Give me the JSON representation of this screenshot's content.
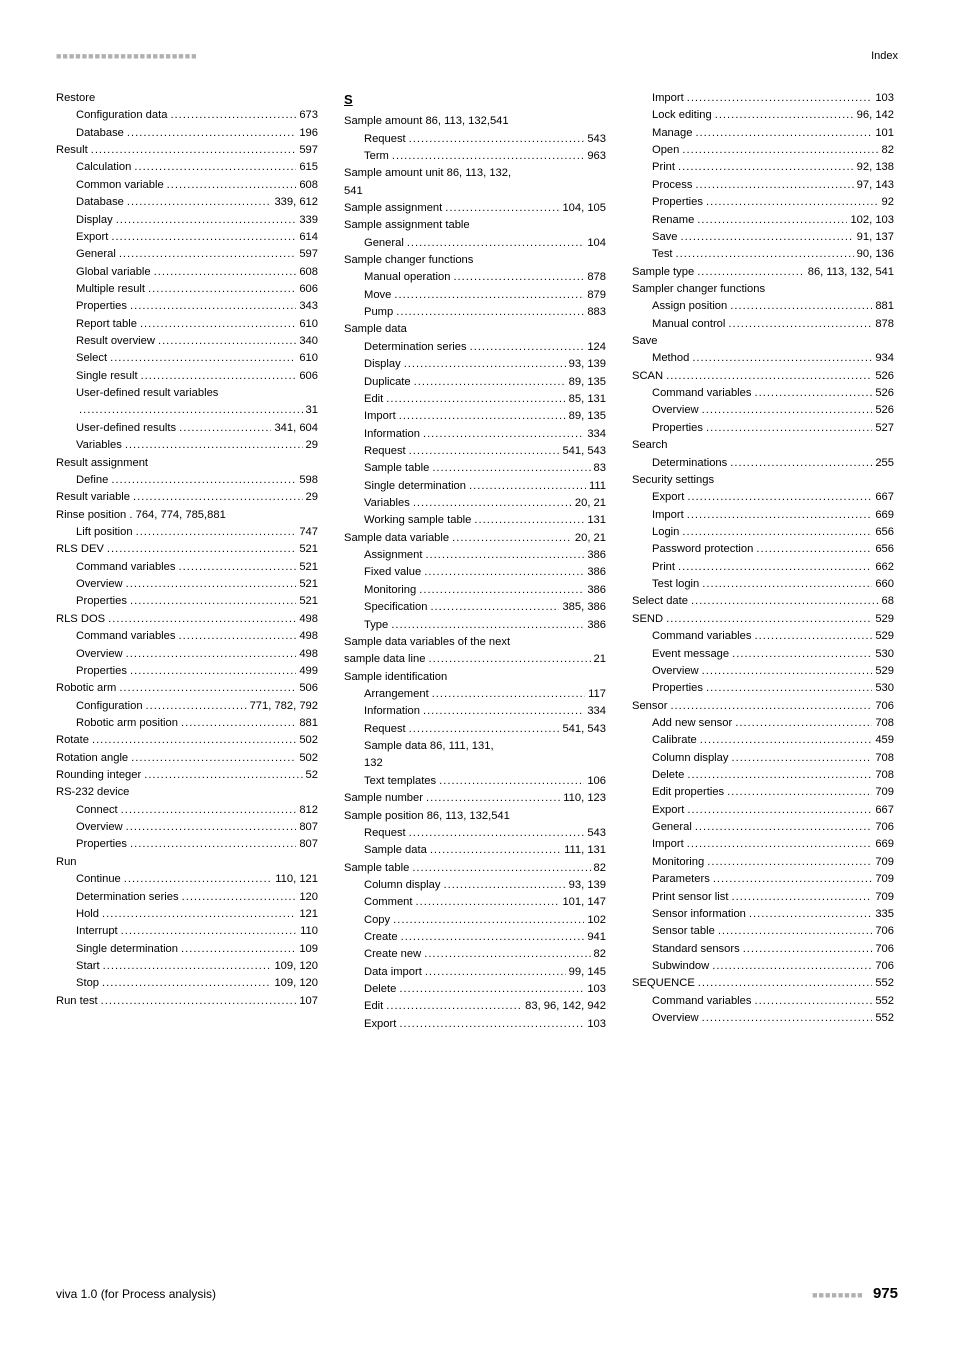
{
  "header": {
    "squares": "■■■■■■■■■■■■■■■■■■■■■■",
    "right_label": "Index"
  },
  "footer": {
    "left": "viva 1.0 (for Process analysis)",
    "squares": "■■■■■■■■",
    "page": "975"
  },
  "col1": [
    {
      "t": "h",
      "label": "Restore"
    },
    {
      "t": "e",
      "indent": 1,
      "label": "Configuration data",
      "page": "673"
    },
    {
      "t": "e",
      "indent": 1,
      "label": "Database",
      "page": "196"
    },
    {
      "t": "e",
      "indent": 0,
      "label": "Result",
      "page": "597"
    },
    {
      "t": "e",
      "indent": 1,
      "label": "Calculation",
      "page": "615"
    },
    {
      "t": "e",
      "indent": 1,
      "label": "Common variable",
      "page": "608"
    },
    {
      "t": "e",
      "indent": 1,
      "label": "Database",
      "page": "339, 612"
    },
    {
      "t": "e",
      "indent": 1,
      "label": "Display",
      "page": "339"
    },
    {
      "t": "e",
      "indent": 1,
      "label": "Export",
      "page": "614"
    },
    {
      "t": "e",
      "indent": 1,
      "label": "General",
      "page": "597"
    },
    {
      "t": "e",
      "indent": 1,
      "label": "Global variable",
      "page": "608"
    },
    {
      "t": "e",
      "indent": 1,
      "label": "Multiple result",
      "page": "606"
    },
    {
      "t": "e",
      "indent": 1,
      "label": "Properties",
      "page": "343"
    },
    {
      "t": "e",
      "indent": 1,
      "label": "Report table",
      "page": "610"
    },
    {
      "t": "e",
      "indent": 1,
      "label": "Result overview",
      "page": "340"
    },
    {
      "t": "e",
      "indent": 1,
      "label": "Select",
      "page": "610"
    },
    {
      "t": "e",
      "indent": 1,
      "label": "Single result",
      "page": "606"
    },
    {
      "t": "p",
      "indent": 1,
      "label": "User-defined result variables"
    },
    {
      "t": "e",
      "indent": 1,
      "label": "",
      "page": "31"
    },
    {
      "t": "e",
      "indent": 1,
      "label": "User-defined results",
      "page": "341, 604"
    },
    {
      "t": "e",
      "indent": 1,
      "label": "Variables",
      "page": "29"
    },
    {
      "t": "h",
      "label": "Result assignment"
    },
    {
      "t": "e",
      "indent": 1,
      "label": "Define",
      "page": "598"
    },
    {
      "t": "e",
      "indent": 0,
      "label": "Result variable",
      "page": "29"
    },
    {
      "t": "e",
      "indent": 0,
      "label": "Rinse position . 764, 774, 785,",
      "page": "881",
      "nodots": true
    },
    {
      "t": "e",
      "indent": 1,
      "label": "Lift position",
      "page": "747"
    },
    {
      "t": "e",
      "indent": 0,
      "label": "RLS DEV",
      "page": "521"
    },
    {
      "t": "e",
      "indent": 1,
      "label": "Command variables",
      "page": "521"
    },
    {
      "t": "e",
      "indent": 1,
      "label": "Overview",
      "page": "521"
    },
    {
      "t": "e",
      "indent": 1,
      "label": "Properties",
      "page": "521"
    },
    {
      "t": "e",
      "indent": 0,
      "label": "RLS DOS",
      "page": "498"
    },
    {
      "t": "e",
      "indent": 1,
      "label": "Command variables",
      "page": "498"
    },
    {
      "t": "e",
      "indent": 1,
      "label": "Overview",
      "page": "498"
    },
    {
      "t": "e",
      "indent": 1,
      "label": "Properties",
      "page": "499"
    },
    {
      "t": "e",
      "indent": 0,
      "label": "Robotic arm",
      "page": "506"
    },
    {
      "t": "e",
      "indent": 1,
      "label": "Configuration",
      "page": "771, 782, 792"
    },
    {
      "t": "e",
      "indent": 1,
      "label": "Robotic arm position",
      "page": "881"
    },
    {
      "t": "e",
      "indent": 0,
      "label": "Rotate",
      "page": "502"
    },
    {
      "t": "e",
      "indent": 0,
      "label": "Rotation angle",
      "page": "502"
    },
    {
      "t": "e",
      "indent": 0,
      "label": "Rounding integer",
      "page": "52"
    },
    {
      "t": "h",
      "label": "RS-232 device"
    },
    {
      "t": "e",
      "indent": 1,
      "label": "Connect",
      "page": "812"
    },
    {
      "t": "e",
      "indent": 1,
      "label": "Overview",
      "page": "807"
    },
    {
      "t": "e",
      "indent": 1,
      "label": "Properties",
      "page": "807"
    },
    {
      "t": "h",
      "label": "Run"
    },
    {
      "t": "e",
      "indent": 1,
      "label": "Continue",
      "page": "110, 121"
    },
    {
      "t": "e",
      "indent": 1,
      "label": "Determination series",
      "page": "120"
    },
    {
      "t": "e",
      "indent": 1,
      "label": "Hold",
      "page": "121"
    },
    {
      "t": "e",
      "indent": 1,
      "label": "Interrupt",
      "page": "110"
    },
    {
      "t": "e",
      "indent": 1,
      "label": "Single determination",
      "page": "109"
    },
    {
      "t": "e",
      "indent": 1,
      "label": "Start",
      "page": "109, 120"
    },
    {
      "t": "e",
      "indent": 1,
      "label": "Stop",
      "page": "109, 120"
    },
    {
      "t": "e",
      "indent": 0,
      "label": "Run test",
      "page": "107"
    }
  ],
  "col2": [
    {
      "t": "s",
      "label": "S"
    },
    {
      "t": "e",
      "indent": 0,
      "label": "Sample amount  86, 113, 132,",
      "page": "541",
      "nodots": true
    },
    {
      "t": "e",
      "indent": 1,
      "label": "Request",
      "page": "543"
    },
    {
      "t": "e",
      "indent": 1,
      "label": "Term",
      "page": "963"
    },
    {
      "t": "p",
      "indent": 0,
      "label": "Sample amount unit  86, 113, 132,"
    },
    {
      "t": "p",
      "indent": 0,
      "label": "541"
    },
    {
      "t": "e",
      "indent": 0,
      "label": "Sample assignment",
      "page": "104, 105"
    },
    {
      "t": "h",
      "label": "Sample assignment table"
    },
    {
      "t": "e",
      "indent": 1,
      "label": "General",
      "page": "104"
    },
    {
      "t": "h",
      "label": "Sample changer functions"
    },
    {
      "t": "e",
      "indent": 1,
      "label": "Manual operation",
      "page": "878"
    },
    {
      "t": "e",
      "indent": 1,
      "label": "Move",
      "page": "879"
    },
    {
      "t": "e",
      "indent": 1,
      "label": "Pump",
      "page": "883"
    },
    {
      "t": "h",
      "label": "Sample data"
    },
    {
      "t": "e",
      "indent": 1,
      "label": "Determination series",
      "page": "124"
    },
    {
      "t": "e",
      "indent": 1,
      "label": "Display",
      "page": "93, 139"
    },
    {
      "t": "e",
      "indent": 1,
      "label": "Duplicate",
      "page": "89, 135"
    },
    {
      "t": "e",
      "indent": 1,
      "label": "Edit",
      "page": "85, 131"
    },
    {
      "t": "e",
      "indent": 1,
      "label": "Import",
      "page": "89, 135"
    },
    {
      "t": "e",
      "indent": 1,
      "label": "Information",
      "page": "334"
    },
    {
      "t": "e",
      "indent": 1,
      "label": "Request",
      "page": "541, 543"
    },
    {
      "t": "e",
      "indent": 1,
      "label": "Sample table",
      "page": "83"
    },
    {
      "t": "e",
      "indent": 1,
      "label": "Single determination",
      "page": "111"
    },
    {
      "t": "e",
      "indent": 1,
      "label": "Variables",
      "page": "20, 21"
    },
    {
      "t": "e",
      "indent": 1,
      "label": "Working sample table",
      "page": "131"
    },
    {
      "t": "e",
      "indent": 0,
      "label": "Sample data variable",
      "page": "20, 21"
    },
    {
      "t": "e",
      "indent": 1,
      "label": "Assignment",
      "page": "386"
    },
    {
      "t": "e",
      "indent": 1,
      "label": "Fixed value",
      "page": "386"
    },
    {
      "t": "e",
      "indent": 1,
      "label": "Monitoring",
      "page": "386"
    },
    {
      "t": "e",
      "indent": 1,
      "label": "Specification",
      "page": "385, 386"
    },
    {
      "t": "e",
      "indent": 1,
      "label": "Type",
      "page": "386"
    },
    {
      "t": "p",
      "indent": 0,
      "label": "Sample data variables of the next"
    },
    {
      "t": "e",
      "indent": 0,
      "label": "sample data line",
      "page": "21"
    },
    {
      "t": "h",
      "label": "Sample identification"
    },
    {
      "t": "e",
      "indent": 1,
      "label": "Arrangement",
      "page": "117"
    },
    {
      "t": "e",
      "indent": 1,
      "label": "Information",
      "page": "334"
    },
    {
      "t": "e",
      "indent": 1,
      "label": "Request",
      "page": "541, 543"
    },
    {
      "t": "p",
      "indent": 1,
      "label": "Sample data  86, 111, 131,"
    },
    {
      "t": "p",
      "indent": 1,
      "label": "132"
    },
    {
      "t": "e",
      "indent": 1,
      "label": "Text templates",
      "page": "106"
    },
    {
      "t": "e",
      "indent": 0,
      "label": "Sample number",
      "page": "110, 123"
    },
    {
      "t": "e",
      "indent": 0,
      "label": "Sample position  86, 113, 132,",
      "page": "541",
      "nodots": true
    },
    {
      "t": "e",
      "indent": 1,
      "label": "Request",
      "page": "543"
    },
    {
      "t": "e",
      "indent": 1,
      "label": "Sample data",
      "page": "111, 131"
    },
    {
      "t": "e",
      "indent": 0,
      "label": "Sample table",
      "page": "82"
    },
    {
      "t": "e",
      "indent": 1,
      "label": "Column display",
      "page": "93, 139"
    },
    {
      "t": "e",
      "indent": 1,
      "label": "Comment",
      "page": "101, 147"
    },
    {
      "t": "e",
      "indent": 1,
      "label": "Copy",
      "page": "102"
    },
    {
      "t": "e",
      "indent": 1,
      "label": "Create",
      "page": "941"
    },
    {
      "t": "e",
      "indent": 1,
      "label": "Create new",
      "page": "82"
    },
    {
      "t": "e",
      "indent": 1,
      "label": "Data import",
      "page": "99, 145"
    },
    {
      "t": "e",
      "indent": 1,
      "label": "Delete",
      "page": "103"
    },
    {
      "t": "e",
      "indent": 1,
      "label": "Edit",
      "page": "83, 96, 142, 942"
    },
    {
      "t": "e",
      "indent": 1,
      "label": "Export",
      "page": "103"
    }
  ],
  "col3": [
    {
      "t": "e",
      "indent": 1,
      "label": "Import",
      "page": "103"
    },
    {
      "t": "e",
      "indent": 1,
      "label": "Lock editing",
      "page": "96, 142"
    },
    {
      "t": "e",
      "indent": 1,
      "label": "Manage",
      "page": "101"
    },
    {
      "t": "e",
      "indent": 1,
      "label": "Open",
      "page": "82"
    },
    {
      "t": "e",
      "indent": 1,
      "label": "Print",
      "page": "92, 138"
    },
    {
      "t": "e",
      "indent": 1,
      "label": "Process",
      "page": "97, 143"
    },
    {
      "t": "e",
      "indent": 1,
      "label": "Properties",
      "page": "92"
    },
    {
      "t": "e",
      "indent": 1,
      "label": "Rename",
      "page": "102, 103"
    },
    {
      "t": "e",
      "indent": 1,
      "label": "Save",
      "page": "91, 137"
    },
    {
      "t": "e",
      "indent": 1,
      "label": "Test",
      "page": "90, 136"
    },
    {
      "t": "e",
      "indent": 0,
      "label": "Sample type",
      "page": "86, 113, 132, 541"
    },
    {
      "t": "h",
      "label": "Sampler changer functions"
    },
    {
      "t": "e",
      "indent": 1,
      "label": "Assign position",
      "page": "881"
    },
    {
      "t": "e",
      "indent": 1,
      "label": "Manual control",
      "page": "878"
    },
    {
      "t": "h",
      "label": "Save"
    },
    {
      "t": "e",
      "indent": 1,
      "label": "Method",
      "page": "934"
    },
    {
      "t": "e",
      "indent": 0,
      "label": "SCAN",
      "page": "526"
    },
    {
      "t": "e",
      "indent": 1,
      "label": "Command variables",
      "page": "526"
    },
    {
      "t": "e",
      "indent": 1,
      "label": "Overview",
      "page": "526"
    },
    {
      "t": "e",
      "indent": 1,
      "label": "Properties",
      "page": "527"
    },
    {
      "t": "h",
      "label": "Search"
    },
    {
      "t": "e",
      "indent": 1,
      "label": "Determinations",
      "page": "255"
    },
    {
      "t": "h",
      "label": "Security settings"
    },
    {
      "t": "e",
      "indent": 1,
      "label": "Export",
      "page": "667"
    },
    {
      "t": "e",
      "indent": 1,
      "label": "Import",
      "page": "669"
    },
    {
      "t": "e",
      "indent": 1,
      "label": "Login",
      "page": "656"
    },
    {
      "t": "e",
      "indent": 1,
      "label": "Password protection",
      "page": "656"
    },
    {
      "t": "e",
      "indent": 1,
      "label": "Print",
      "page": "662"
    },
    {
      "t": "e",
      "indent": 1,
      "label": "Test login",
      "page": "660"
    },
    {
      "t": "e",
      "indent": 0,
      "label": "Select date",
      "page": "68"
    },
    {
      "t": "e",
      "indent": 0,
      "label": "SEND",
      "page": "529"
    },
    {
      "t": "e",
      "indent": 1,
      "label": "Command variables",
      "page": "529"
    },
    {
      "t": "e",
      "indent": 1,
      "label": "Event message",
      "page": "530"
    },
    {
      "t": "e",
      "indent": 1,
      "label": "Overview",
      "page": "529"
    },
    {
      "t": "e",
      "indent": 1,
      "label": "Properties",
      "page": "530"
    },
    {
      "t": "e",
      "indent": 0,
      "label": "Sensor",
      "page": "706"
    },
    {
      "t": "e",
      "indent": 1,
      "label": "Add new sensor",
      "page": "708"
    },
    {
      "t": "e",
      "indent": 1,
      "label": "Calibrate",
      "page": "459"
    },
    {
      "t": "e",
      "indent": 1,
      "label": "Column display",
      "page": "708"
    },
    {
      "t": "e",
      "indent": 1,
      "label": "Delete",
      "page": "708"
    },
    {
      "t": "e",
      "indent": 1,
      "label": "Edit properties",
      "page": "709"
    },
    {
      "t": "e",
      "indent": 1,
      "label": "Export",
      "page": "667"
    },
    {
      "t": "e",
      "indent": 1,
      "label": "General",
      "page": "706"
    },
    {
      "t": "e",
      "indent": 1,
      "label": "Import",
      "page": "669"
    },
    {
      "t": "e",
      "indent": 1,
      "label": "Monitoring",
      "page": "709"
    },
    {
      "t": "e",
      "indent": 1,
      "label": "Parameters",
      "page": "709"
    },
    {
      "t": "e",
      "indent": 1,
      "label": "Print sensor list",
      "page": "709"
    },
    {
      "t": "e",
      "indent": 1,
      "label": "Sensor information",
      "page": "335"
    },
    {
      "t": "e",
      "indent": 1,
      "label": "Sensor table",
      "page": "706"
    },
    {
      "t": "e",
      "indent": 1,
      "label": "Standard sensors",
      "page": "706"
    },
    {
      "t": "e",
      "indent": 1,
      "label": "Subwindow",
      "page": "706"
    },
    {
      "t": "e",
      "indent": 0,
      "label": "SEQUENCE",
      "page": "552"
    },
    {
      "t": "e",
      "indent": 1,
      "label": "Command variables",
      "page": "552"
    },
    {
      "t": "e",
      "indent": 1,
      "label": "Overview",
      "page": "552"
    }
  ]
}
